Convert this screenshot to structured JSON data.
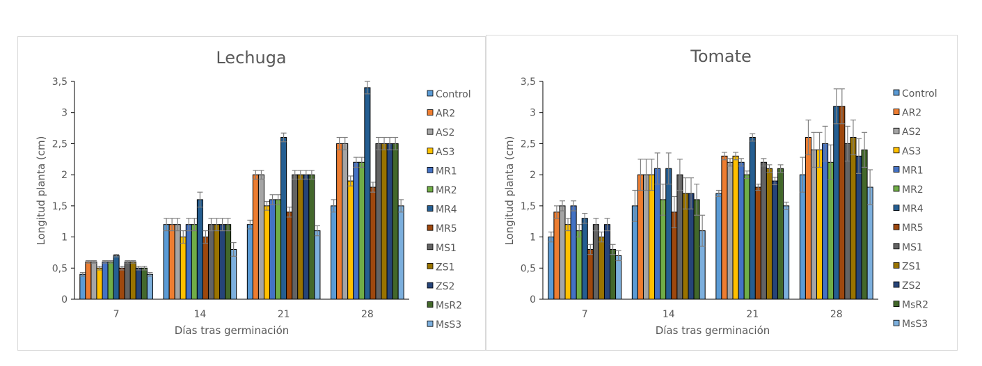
{
  "chart_data": [
    {
      "type": "bar",
      "title": "Lechuga",
      "xlabel": "Días tras germinación",
      "ylabel": "Longitud planta (cm)",
      "ylim": [
        0,
        3.5
      ],
      "yticks": [
        "0",
        "0,5",
        "1",
        "1,5",
        "2",
        "2,5",
        "3",
        "3,5"
      ],
      "categories": [
        "7",
        "14",
        "21",
        "28"
      ],
      "legend_position": "right",
      "error_bars": true,
      "series": [
        {
          "name": "Control",
          "color": "#5B9BD5",
          "values": [
            0.4,
            1.2,
            1.2,
            1.5
          ],
          "errors": [
            0.03,
            0.1,
            0.07,
            0.1
          ]
        },
        {
          "name": "AR2",
          "color": "#ED7D31",
          "values": [
            0.6,
            1.2,
            2.0,
            2.5
          ],
          "errors": [
            0.02,
            0.1,
            0.07,
            0.1
          ]
        },
        {
          "name": "AS2",
          "color": "#A5A5A5",
          "values": [
            0.6,
            1.2,
            2.0,
            2.5
          ],
          "errors": [
            0.02,
            0.1,
            0.07,
            0.1
          ]
        },
        {
          "name": "AS3",
          "color": "#FFC000",
          "values": [
            0.5,
            1.0,
            1.5,
            1.9
          ],
          "errors": [
            0.03,
            0.1,
            0.07,
            0.08
          ]
        },
        {
          "name": "MR1",
          "color": "#4472C4",
          "values": [
            0.6,
            1.2,
            1.6,
            2.2
          ],
          "errors": [
            0.02,
            0.1,
            0.08,
            0.08
          ]
        },
        {
          "name": "MR2",
          "color": "#70AD47",
          "values": [
            0.6,
            1.2,
            1.6,
            2.2
          ],
          "errors": [
            0.02,
            0.1,
            0.08,
            0.08
          ]
        },
        {
          "name": "MR4",
          "color": "#255E91",
          "values": [
            0.7,
            1.6,
            2.6,
            3.4
          ],
          "errors": [
            0.02,
            0.12,
            0.07,
            0.1
          ]
        },
        {
          "name": "MR5",
          "color": "#9E480E",
          "values": [
            0.5,
            1.0,
            1.4,
            1.8
          ],
          "errors": [
            0.03,
            0.1,
            0.08,
            0.08
          ]
        },
        {
          "name": "MS1",
          "color": "#636363",
          "values": [
            0.6,
            1.2,
            2.0,
            2.5
          ],
          "errors": [
            0.02,
            0.1,
            0.07,
            0.1
          ]
        },
        {
          "name": "ZS1",
          "color": "#997300",
          "values": [
            0.6,
            1.2,
            2.0,
            2.5
          ],
          "errors": [
            0.02,
            0.1,
            0.07,
            0.1
          ]
        },
        {
          "name": "ZS2",
          "color": "#264478",
          "values": [
            0.5,
            1.2,
            2.0,
            2.5
          ],
          "errors": [
            0.03,
            0.1,
            0.07,
            0.1
          ]
        },
        {
          "name": "MsR2",
          "color": "#43682B",
          "values": [
            0.5,
            1.2,
            2.0,
            2.5
          ],
          "errors": [
            0.03,
            0.1,
            0.07,
            0.1
          ]
        },
        {
          "name": "MsS3",
          "color": "#7CAFDD",
          "values": [
            0.4,
            0.8,
            1.1,
            1.5
          ],
          "errors": [
            0.03,
            0.11,
            0.08,
            0.1
          ]
        }
      ]
    },
    {
      "type": "bar",
      "title": "Tomate",
      "xlabel": "Días tras germinación",
      "ylabel": "Longitud planta (cm)",
      "ylim": [
        0,
        3.5
      ],
      "yticks": [
        "0",
        "0,5",
        "1",
        "1,5",
        "2",
        "2,5",
        "3",
        "3,5"
      ],
      "categories": [
        "7",
        "14",
        "21",
        "28"
      ],
      "legend_position": "right",
      "error_bars": true,
      "series": [
        {
          "name": "Control",
          "color": "#5B9BD5",
          "values": [
            1.0,
            1.5,
            1.7,
            2.0
          ],
          "errors": [
            0.08,
            0.25,
            0.05,
            0.28
          ]
        },
        {
          "name": "AR2",
          "color": "#ED7D31",
          "values": [
            1.4,
            2.0,
            2.3,
            2.6
          ],
          "errors": [
            0.1,
            0.25,
            0.06,
            0.28
          ]
        },
        {
          "name": "AS2",
          "color": "#A5A5A5",
          "values": [
            1.5,
            2.0,
            2.2,
            2.4
          ],
          "errors": [
            0.08,
            0.25,
            0.06,
            0.28
          ]
        },
        {
          "name": "AS3",
          "color": "#FFC000",
          "values": [
            1.2,
            2.0,
            2.3,
            2.4
          ],
          "errors": [
            0.1,
            0.25,
            0.06,
            0.28
          ]
        },
        {
          "name": "MR1",
          "color": "#4472C4",
          "values": [
            1.5,
            2.1,
            2.2,
            2.5
          ],
          "errors": [
            0.08,
            0.25,
            0.06,
            0.28
          ]
        },
        {
          "name": "MR2",
          "color": "#70AD47",
          "values": [
            1.1,
            1.6,
            2.0,
            2.2
          ],
          "errors": [
            0.1,
            0.25,
            0.06,
            0.28
          ]
        },
        {
          "name": "MR4",
          "color": "#255E91",
          "values": [
            1.3,
            2.1,
            2.6,
            3.1
          ],
          "errors": [
            0.08,
            0.25,
            0.06,
            0.28
          ]
        },
        {
          "name": "MR5",
          "color": "#9E480E",
          "values": [
            0.8,
            1.4,
            1.8,
            3.1
          ],
          "errors": [
            0.08,
            0.25,
            0.05,
            0.28
          ]
        },
        {
          "name": "MS1",
          "color": "#636363",
          "values": [
            1.2,
            2.0,
            2.2,
            2.5
          ],
          "errors": [
            0.1,
            0.25,
            0.06,
            0.28
          ]
        },
        {
          "name": "ZS1",
          "color": "#997300",
          "values": [
            1.0,
            1.7,
            2.1,
            2.6
          ],
          "errors": [
            0.08,
            0.25,
            0.06,
            0.28
          ]
        },
        {
          "name": "ZS2",
          "color": "#264478",
          "values": [
            1.2,
            1.7,
            1.9,
            2.3
          ],
          "errors": [
            0.1,
            0.25,
            0.06,
            0.28
          ]
        },
        {
          "name": "MsR2",
          "color": "#43682B",
          "values": [
            0.8,
            1.6,
            2.1,
            2.4
          ],
          "errors": [
            0.08,
            0.25,
            0.06,
            0.28
          ]
        },
        {
          "name": "MsS3",
          "color": "#7CAFDD",
          "values": [
            0.7,
            1.1,
            1.5,
            1.8
          ],
          "errors": [
            0.08,
            0.25,
            0.06,
            0.28
          ]
        }
      ]
    }
  ]
}
